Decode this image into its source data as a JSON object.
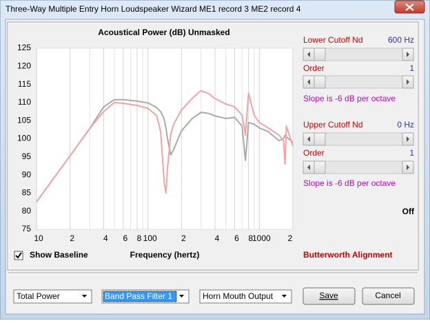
{
  "window": {
    "title": "Three-Way Multiple Entry Horn Loudspeaker Wizard    ME1 record 3    ME2 record 4"
  },
  "chart_data": {
    "type": "line",
    "title": "Acoustical Power (dB)   Unmasked",
    "xlabel": "Frequency (hertz)",
    "xscale": "log",
    "grid": true,
    "x": [
      10,
      20,
      30,
      40,
      50,
      60,
      80,
      100,
      120,
      130,
      140,
      145,
      150,
      160,
      170,
      200,
      250,
      300,
      350,
      400,
      500,
      600,
      700,
      750,
      800,
      900,
      1000,
      1200,
      1500,
      1650,
      1700,
      1750,
      2000
    ],
    "series": [
      {
        "color": "#a9a9a9",
        "values": [
          82.6,
          95.3,
          102.8,
          108.8,
          110.8,
          110.8,
          110.4,
          109.9,
          108.6,
          107.5,
          105.5,
          103,
          100,
          95.5,
          97,
          102.2,
          105.6,
          107.3,
          107,
          106.3,
          105.6,
          105.9,
          103.5,
          94,
          104.5,
          104,
          103,
          102,
          99.5,
          100,
          101,
          100.5,
          99
        ]
      },
      {
        "color": "#f4a3a3",
        "values": [
          82.6,
          95.3,
          102.8,
          107.5,
          110,
          109.8,
          109.2,
          108.4,
          106.4,
          102,
          88,
          85,
          92,
          101,
          104,
          107.9,
          111.2,
          113.3,
          112.5,
          111.1,
          109.6,
          108.8,
          106.5,
          101,
          112.6,
          106.4,
          104.5,
          103,
          101,
          99.5,
          93,
          103.5,
          98
        ]
      }
    ],
    "xlim": [
      10,
      2000
    ],
    "ylim": [
      75,
      125
    ],
    "xticks": [
      10,
      {
        "value": 20,
        "label": "2"
      },
      {
        "value": 40,
        "label": "4"
      },
      {
        "value": 60,
        "label": "6"
      },
      {
        "value": 80,
        "label": "8"
      },
      100,
      {
        "value": 200,
        "label": "2"
      },
      {
        "value": 400,
        "label": "4"
      },
      {
        "value": 600,
        "label": "6"
      },
      {
        "value": 800,
        "label": "8"
      },
      1000,
      {
        "value": 2000,
        "label": "2"
      }
    ],
    "xminor": [
      30,
      50,
      70,
      90,
      300,
      500,
      700,
      900
    ],
    "yticks": [
      75,
      80,
      85,
      90,
      95,
      100,
      105,
      110,
      115,
      120,
      125
    ]
  },
  "side_panel": {
    "lower_cutoff": "Lower Cutoff  Nd",
    "lower_cutoff_value": "600 Hz",
    "lower_order": "Order",
    "lower_order_value": "1",
    "lower_slope": "Slope is -6 dB per octave",
    "upper_cutoff": "Upper Cutoff  Nd",
    "upper_cutoff_value": "0 Hz",
    "upper_order": "Order",
    "upper_order_value": "1",
    "upper_slope": "Slope is -6 dB per octave",
    "state": "Off",
    "alignment": "Butterworth Alignment"
  },
  "controls": {
    "show_baseline": "Show Baseline",
    "show_baseline_checked": true,
    "combo1": "Total Power",
    "combo2": "Band Pass Filter 1",
    "combo3": "Horn Mouth Output",
    "save": "Save",
    "cancel": "Cancel"
  }
}
